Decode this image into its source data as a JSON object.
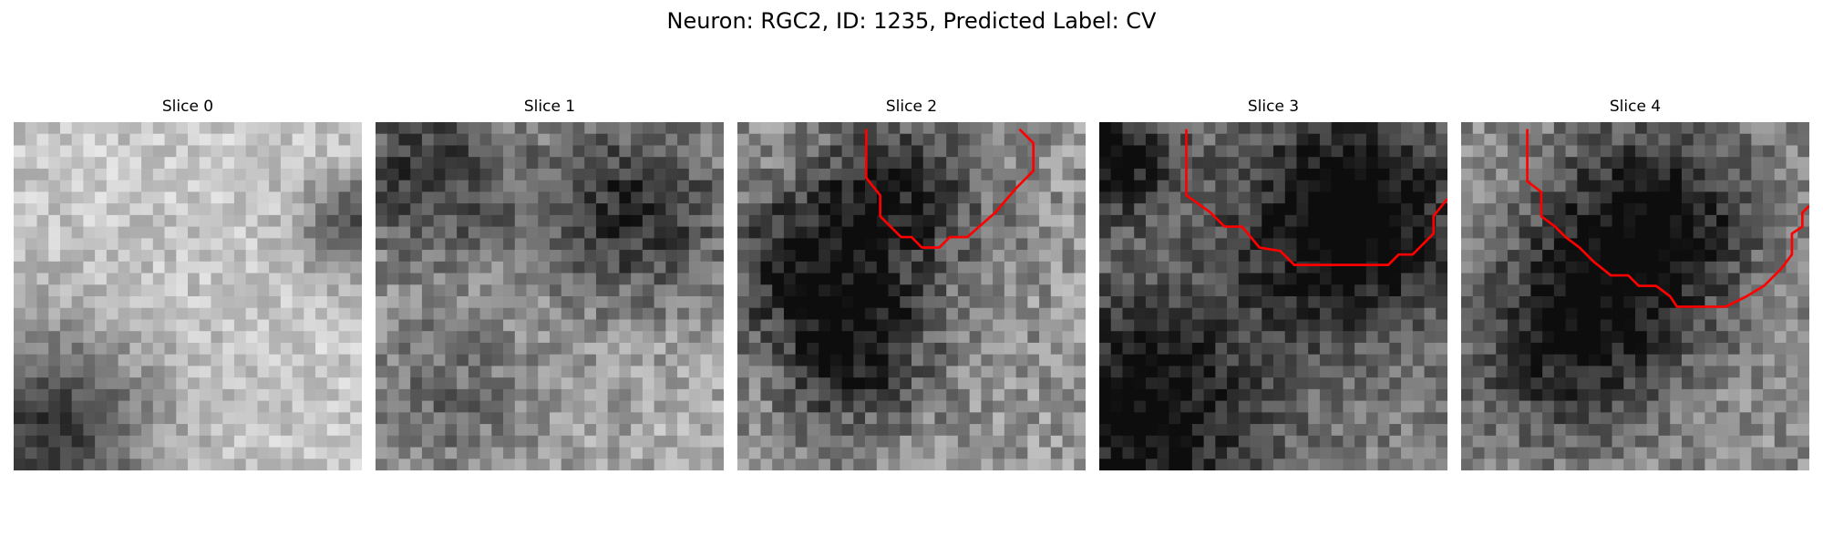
{
  "figure": {
    "title": "Neuron: RGC2, ID: 1235, Predicted Label: CV"
  },
  "panels": [
    {
      "title": "Slice 0",
      "contour": []
    },
    {
      "title": "Slice 1",
      "contour": []
    },
    {
      "title": "Slice 2",
      "contour": [
        [
          3.7,
          0.2
        ],
        [
          3.7,
          1.6
        ],
        [
          4.1,
          2.1
        ],
        [
          4.1,
          2.7
        ],
        [
          4.7,
          3.3
        ],
        [
          5.0,
          3.3
        ],
        [
          5.3,
          3.6
        ],
        [
          5.8,
          3.6
        ],
        [
          6.1,
          3.3
        ],
        [
          6.6,
          3.3
        ],
        [
          7.4,
          2.6
        ],
        [
          8.0,
          1.9
        ],
        [
          8.5,
          1.4
        ],
        [
          8.5,
          0.6
        ],
        [
          8.1,
          0.2
        ]
      ]
    },
    {
      "title": "Slice 3",
      "contour": [
        [
          2.5,
          0.2
        ],
        [
          2.5,
          2.1
        ],
        [
          3.2,
          2.6
        ],
        [
          3.6,
          3.0
        ],
        [
          4.1,
          3.0
        ],
        [
          4.6,
          3.6
        ],
        [
          5.2,
          3.7
        ],
        [
          5.6,
          4.1
        ],
        [
          8.3,
          4.1
        ],
        [
          8.6,
          3.8
        ],
        [
          9.0,
          3.8
        ],
        [
          9.3,
          3.5
        ],
        [
          9.6,
          3.2
        ],
        [
          9.6,
          2.7
        ],
        [
          10.0,
          2.2
        ]
      ]
    },
    {
      "title": "Slice 4",
      "contour": [
        [
          1.9,
          0.2
        ],
        [
          1.9,
          1.7
        ],
        [
          2.3,
          2.0
        ],
        [
          2.3,
          2.7
        ],
        [
          2.7,
          3.0
        ],
        [
          3.0,
          3.3
        ],
        [
          3.4,
          3.6
        ],
        [
          3.8,
          4.0
        ],
        [
          4.3,
          4.4
        ],
        [
          4.8,
          4.4
        ],
        [
          5.1,
          4.7
        ],
        [
          5.6,
          4.7
        ],
        [
          6.0,
          5.0
        ],
        [
          6.2,
          5.3
        ],
        [
          7.6,
          5.3
        ],
        [
          8.2,
          5.0
        ],
        [
          8.7,
          4.7
        ],
        [
          9.2,
          4.2
        ],
        [
          9.5,
          3.8
        ],
        [
          9.5,
          3.2
        ],
        [
          9.8,
          3.0
        ],
        [
          9.8,
          2.6
        ],
        [
          10.0,
          2.4
        ]
      ]
    }
  ],
  "colors": {
    "contour": "#ff0000"
  }
}
